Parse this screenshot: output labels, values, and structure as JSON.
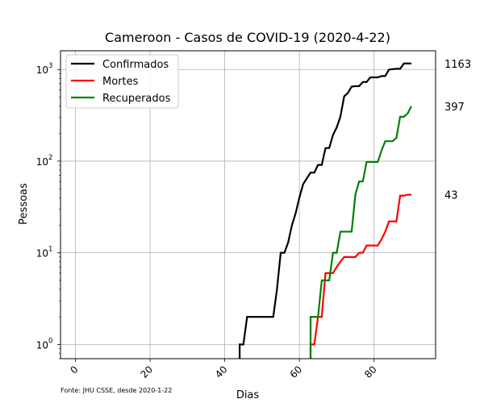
{
  "chart_data": {
    "type": "line",
    "title": "Cameroon - Casos de COVID-19 (2020-4-22)",
    "xlabel": "Dias",
    "ylabel": "Pessoas",
    "xlim": [
      -4,
      96.5
    ],
    "ylim": [
      0.7,
      1600
    ],
    "yscale": "log",
    "grid": true,
    "legend_position": "top-left",
    "xticks": [
      0,
      20,
      40,
      60,
      80
    ],
    "xtick_labels": [
      "0",
      "20",
      "40",
      "60",
      "80"
    ],
    "yticks": [
      1,
      10,
      100,
      1000
    ],
    "ytick_labels": [
      {
        "base": "10",
        "exp": "0"
      },
      {
        "base": "10",
        "exp": "1"
      },
      {
        "base": "10",
        "exp": "2"
      },
      {
        "base": "10",
        "exp": "3"
      }
    ],
    "footnote": "Fonte: JHU CSSE, desde 2020-1-22",
    "series": [
      {
        "name": "Confirmados",
        "color": "#000000",
        "end_label": "1163",
        "points": [
          [
            44,
            0.7
          ],
          [
            44,
            1
          ],
          [
            45,
            1
          ],
          [
            46,
            2
          ],
          [
            53,
            2
          ],
          [
            54,
            4
          ],
          [
            55,
            10
          ],
          [
            56,
            10
          ],
          [
            57,
            13
          ],
          [
            58,
            20
          ],
          [
            59,
            27
          ],
          [
            60,
            40
          ],
          [
            61,
            56
          ],
          [
            62,
            65
          ],
          [
            63,
            75
          ],
          [
            64,
            75
          ],
          [
            65,
            91
          ],
          [
            66,
            91
          ],
          [
            67,
            139
          ],
          [
            68,
            139
          ],
          [
            69,
            193
          ],
          [
            70,
            233
          ],
          [
            71,
            306
          ],
          [
            72,
            509
          ],
          [
            73,
            555
          ],
          [
            74,
            650
          ],
          [
            75,
            658
          ],
          [
            76,
            658
          ],
          [
            77,
            730
          ],
          [
            78,
            730
          ],
          [
            79,
            820
          ],
          [
            80,
            820
          ],
          [
            81,
            820
          ],
          [
            82,
            848
          ],
          [
            83,
            848
          ],
          [
            84,
            996
          ],
          [
            85,
            1010
          ],
          [
            86,
            1017
          ],
          [
            87,
            1017
          ],
          [
            88,
            1163
          ],
          [
            89,
            1163
          ],
          [
            90,
            1163
          ]
        ]
      },
      {
        "name": "Mortes",
        "color": "#ff0000",
        "end_label": "43",
        "points": [
          [
            63,
            0.7
          ],
          [
            63,
            1
          ],
          [
            64,
            1
          ],
          [
            65,
            2
          ],
          [
            66,
            2
          ],
          [
            67,
            6
          ],
          [
            68,
            6
          ],
          [
            69,
            6
          ],
          [
            70,
            7
          ],
          [
            71,
            8
          ],
          [
            72,
            9
          ],
          [
            73,
            9
          ],
          [
            74,
            9
          ],
          [
            75,
            9
          ],
          [
            76,
            10
          ],
          [
            77,
            10
          ],
          [
            78,
            12
          ],
          [
            79,
            12
          ],
          [
            80,
            12
          ],
          [
            81,
            12
          ],
          [
            82,
            14
          ],
          [
            83,
            17
          ],
          [
            84,
            22
          ],
          [
            85,
            22
          ],
          [
            86,
            22
          ],
          [
            87,
            42
          ],
          [
            88,
            42
          ],
          [
            89,
            43
          ],
          [
            90,
            43
          ]
        ]
      },
      {
        "name": "Recuperados",
        "color": "#008000",
        "end_label": "397",
        "points": [
          [
            63,
            0.7
          ],
          [
            63,
            2
          ],
          [
            64,
            2
          ],
          [
            65,
            2
          ],
          [
            66,
            5
          ],
          [
            67,
            5
          ],
          [
            68,
            5
          ],
          [
            69,
            10
          ],
          [
            70,
            10
          ],
          [
            71,
            17
          ],
          [
            72,
            17
          ],
          [
            73,
            17
          ],
          [
            74,
            17
          ],
          [
            75,
            43
          ],
          [
            76,
            60
          ],
          [
            77,
            60
          ],
          [
            78,
            98
          ],
          [
            79,
            98
          ],
          [
            80,
            98
          ],
          [
            81,
            98
          ],
          [
            82,
            130
          ],
          [
            83,
            165
          ],
          [
            84,
            165
          ],
          [
            85,
            165
          ],
          [
            86,
            180
          ],
          [
            87,
            305
          ],
          [
            88,
            305
          ],
          [
            89,
            331
          ],
          [
            90,
            397
          ]
        ]
      }
    ]
  }
}
